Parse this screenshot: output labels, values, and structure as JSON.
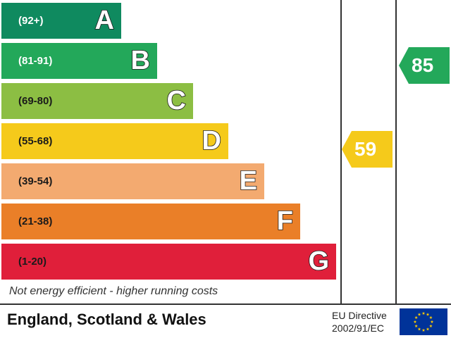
{
  "chart_data": {
    "type": "bar",
    "bands": [
      {
        "range": "(92+)",
        "letter": "A",
        "color": "#0f8a5f",
        "range_color": "#ffffff"
      },
      {
        "range": "(81-91)",
        "letter": "B",
        "color": "#23a85a",
        "range_color": "#ffffff"
      },
      {
        "range": "(69-80)",
        "letter": "C",
        "color": "#8cbe43",
        "range_color": "#1a1a1a"
      },
      {
        "range": "(55-68)",
        "letter": "D",
        "color": "#f5ca1b",
        "range_color": "#1a1a1a"
      },
      {
        "range": "(39-54)",
        "letter": "E",
        "color": "#f3aa70",
        "range_color": "#1a1a1a"
      },
      {
        "range": "(21-38)",
        "letter": "F",
        "color": "#ea7f28",
        "range_color": "#1a1a1a"
      },
      {
        "range": "(1-20)",
        "letter": "G",
        "color": "#e01f3a",
        "range_color": "#1a1a1a"
      }
    ],
    "current": {
      "value": "59",
      "color": "#f5ca1b"
    },
    "potential": {
      "value": "85",
      "color": "#23a85a"
    }
  },
  "caption": "Not energy efficient - higher running costs",
  "footer": {
    "title": "England, Scotland & Wales",
    "directive_line1": "EU Directive",
    "directive_line2": "2002/91/EC",
    "flag_color": "#003399",
    "star_color": "#ffcc00"
  }
}
